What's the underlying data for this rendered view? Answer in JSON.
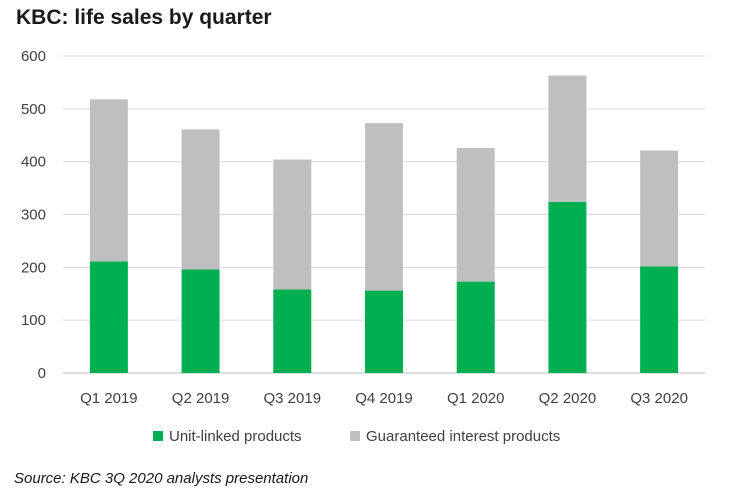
{
  "chart_data": {
    "type": "bar",
    "stacked": true,
    "title": "KBC: life sales by quarter",
    "xlabel": "",
    "ylabel": "",
    "categories": [
      "Q1 2019",
      "Q2 2019",
      "Q3 2019",
      "Q4 2019",
      "Q1 2020",
      "Q2 2020",
      "Q3 2020"
    ],
    "series": [
      {
        "name": "Unit-linked products",
        "color": "#00b050",
        "values": [
          211,
          196,
          158,
          156,
          173,
          324,
          202
        ]
      },
      {
        "name": "Guaranteed interest products",
        "color": "#bfbfbf",
        "values": [
          307,
          265,
          246,
          317,
          253,
          239,
          219
        ]
      }
    ],
    "ylim": [
      0,
      600
    ],
    "yticks": [
      0,
      100,
      200,
      300,
      400,
      500,
      600
    ],
    "grid": true,
    "legend": "bottom"
  },
  "source": "Source: KBC 3Q 2020 analysts presentation"
}
